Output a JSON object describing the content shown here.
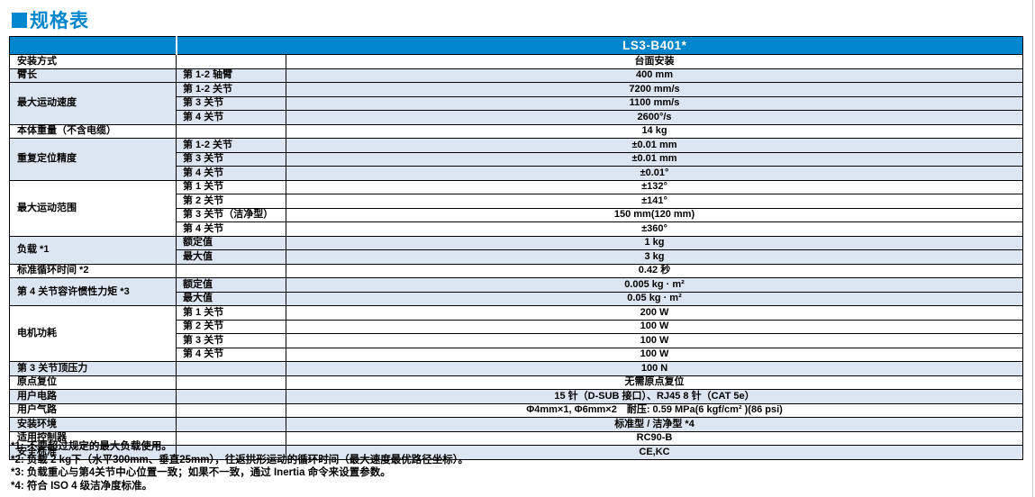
{
  "colors": {
    "brand_blue": "#0086CC",
    "row_shade": "#DCE6F2",
    "border": "#000000"
  },
  "page": {
    "title": "规格表"
  },
  "table": {
    "header": {
      "model": "LS3-B401*"
    },
    "rows": [
      {
        "group": "安装方式",
        "span": 1,
        "sub": "",
        "value": "台面安装",
        "shade": false
      },
      {
        "group": "臂长",
        "span": 1,
        "sub": "第 1-2 轴臂",
        "value": "400 mm",
        "shade": true
      },
      {
        "group": "最大运动速度",
        "span": 3,
        "sub": "第 1-2 关节",
        "value": "7200 mm/s",
        "shade": true
      },
      {
        "sub": "第 3 关节",
        "value": "1100 mm/s",
        "shade": true
      },
      {
        "sub": "第 4 关节",
        "value": "2600°/s",
        "shade": true
      },
      {
        "group": "本体重量（不含电缆）",
        "span": 1,
        "sub": "",
        "value": "14 kg",
        "shade": false
      },
      {
        "group": "重复定位精度",
        "span": 3,
        "sub": "第 1-2 关节",
        "value": "±0.01 mm",
        "shade": true
      },
      {
        "sub": "第 3 关节",
        "value": "±0.01 mm",
        "shade": true
      },
      {
        "sub": "第 4 关节",
        "value": "±0.01°",
        "shade": true
      },
      {
        "group": "最大运动范围",
        "span": 4,
        "sub": "第 1 关节",
        "value": "±132°",
        "shade": false
      },
      {
        "sub": "第 2 关节",
        "value": "±141°",
        "shade": false
      },
      {
        "sub": "第 3 关节（洁净型）",
        "value": "150 mm(120 mm)",
        "shade": false
      },
      {
        "sub": "第 4 关节",
        "value": "±360°",
        "shade": false
      },
      {
        "group": "负载 *1",
        "span": 2,
        "sub": "额定值",
        "value": "1 kg",
        "shade": true
      },
      {
        "sub": "最大值",
        "value": "3 kg",
        "shade": true
      },
      {
        "group": "标准循环时间 *2",
        "span": 1,
        "sub": "",
        "value": "0.42 秒",
        "shade": false
      },
      {
        "group": "第 4 关节容许惯性力矩 *3",
        "span": 2,
        "sub": "额定值",
        "value": "0.005 kg · m²",
        "shade": true
      },
      {
        "sub": "最大值",
        "value": "0.05 kg · m²",
        "shade": true
      },
      {
        "group": "电机功耗",
        "span": 4,
        "sub": "第 1 关节",
        "value": "200 W",
        "shade": false
      },
      {
        "sub": "第 2 关节",
        "value": "100 W",
        "shade": false
      },
      {
        "sub": "第 3 关节",
        "value": "100 W",
        "shade": false
      },
      {
        "sub": "第 4 关节",
        "value": "100 W",
        "shade": false
      },
      {
        "group": "第 3 关节顶压力",
        "span": 1,
        "sub": "",
        "value": "100 N",
        "shade": true
      },
      {
        "group": "原点复位",
        "span": 1,
        "sub": "",
        "value": "无需原点复位",
        "shade": false
      },
      {
        "group": "用户电路",
        "span": 1,
        "sub": "",
        "value": "15 针（D-SUB 接口）、RJ45 8 针（CAT 5e）",
        "shade": true
      },
      {
        "group": "用户气路",
        "span": 1,
        "sub": "",
        "value": "Φ4mm×1, Φ6mm×2　耐压: 0.59 MPa(6 kgf/cm² )(86 psi)",
        "shade": false
      },
      {
        "group": "安装环境",
        "span": 1,
        "sub": "",
        "value": "标准型 / 洁净型 *4",
        "shade": true
      },
      {
        "group": "适用控制器",
        "span": 1,
        "sub": "",
        "value": "RC90-B",
        "shade": false
      },
      {
        "group": "安全标准",
        "span": 1,
        "sub": "",
        "value": "CE,KC",
        "shade": true
      }
    ]
  },
  "footnotes": [
    "*1: 不要超过规定的最大负载使用。",
    "*2: 负载 2 kg下（水平300mm、垂直25mm），往返拱形运动的循环时间（最大速度最优路径坐标）。",
    "*3: 负载重心与第4关节中心位置一致；如果不一致，通过 Inertia 命令来设置参数。",
    "*4: 符合 ISO 4 级洁净度标准。"
  ]
}
